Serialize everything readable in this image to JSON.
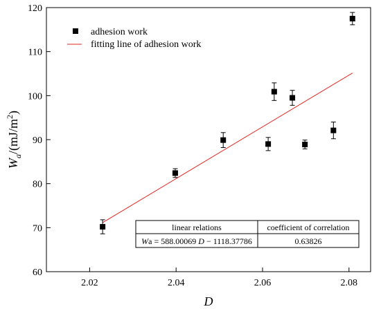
{
  "chart_data": {
    "type": "scatter",
    "xlabel": "D",
    "ylabel": {
      "main": "W",
      "sub": "a",
      "unit_pre": "/(mJ/m",
      "unit_sup": "2",
      "unit_post": ")"
    },
    "xlim": [
      2.01,
      2.085
    ],
    "ylim": [
      60,
      120
    ],
    "xticks": [
      2.02,
      2.04,
      2.06,
      2.08
    ],
    "xtick_labels": [
      "2.02",
      "2.04",
      "2.06",
      "2.08"
    ],
    "yticks": [
      60,
      70,
      80,
      90,
      100,
      110,
      120
    ],
    "ytick_labels": [
      "60",
      "70",
      "80",
      "90",
      "100",
      "110",
      "120"
    ],
    "grid": false,
    "legend_position": "top-left",
    "series": [
      {
        "name": "adhesion work",
        "marker": "square",
        "color": "#000000",
        "points": [
          {
            "x": 2.023,
            "y": 70.2,
            "err": 1.6
          },
          {
            "x": 2.0398,
            "y": 82.4,
            "err": 1.0
          },
          {
            "x": 2.0509,
            "y": 89.9,
            "err": 1.7
          },
          {
            "x": 2.0613,
            "y": 89.0,
            "err": 1.5
          },
          {
            "x": 2.0627,
            "y": 100.9,
            "err": 2.0
          },
          {
            "x": 2.0669,
            "y": 99.5,
            "err": 1.7
          },
          {
            "x": 2.0698,
            "y": 88.9,
            "err": 1.0
          },
          {
            "x": 2.0764,
            "y": 92.1,
            "err": 1.9
          },
          {
            "x": 2.0808,
            "y": 117.5,
            "err": 1.4
          }
        ]
      },
      {
        "name": "fitting line of adhesion work",
        "kind": "line",
        "color": "#e8231f",
        "slope": 588.00069,
        "intercept": -1118.37786,
        "x_range": [
          2.023,
          2.0808
        ]
      }
    ],
    "annotation_table": {
      "headers": [
        "linear relations",
        "coefficient of correlation"
      ],
      "equation": {
        "var": "W",
        "sub": "a",
        "rest_a": " = 588.00069 ",
        "xvar": "D",
        "rest_b": " − 1118.37786"
      },
      "correlation": "0.63826"
    }
  }
}
